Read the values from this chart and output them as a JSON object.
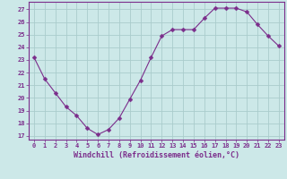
{
  "x": [
    0,
    1,
    2,
    3,
    4,
    5,
    6,
    7,
    8,
    9,
    10,
    11,
    12,
    13,
    14,
    15,
    16,
    17,
    18,
    19,
    20,
    21,
    22,
    23
  ],
  "y": [
    23.2,
    21.5,
    20.4,
    19.3,
    18.6,
    17.6,
    17.1,
    17.5,
    18.4,
    19.9,
    21.4,
    23.2,
    24.9,
    25.4,
    25.4,
    25.4,
    26.3,
    27.1,
    27.1,
    27.1,
    26.8,
    25.8,
    24.9,
    24.1
  ],
  "line_color": "#7b2d8b",
  "marker": "D",
  "marker_size": 2.5,
  "bg_color": "#cce8e8",
  "grid_color": "#aacccc",
  "spine_color": "#7b2d8b",
  "tick_color": "#7b2d8b",
  "xlabel": "Windchill (Refroidissement éolien,°C)",
  "xlabel_color": "#7b2d8b",
  "xlim": [
    -0.5,
    23.5
  ],
  "ylim": [
    16.7,
    27.6
  ],
  "yticks": [
    17,
    18,
    19,
    20,
    21,
    22,
    23,
    24,
    25,
    26,
    27
  ],
  "xticks": [
    0,
    1,
    2,
    3,
    4,
    5,
    6,
    7,
    8,
    9,
    10,
    11,
    12,
    13,
    14,
    15,
    16,
    17,
    18,
    19,
    20,
    21,
    22,
    23
  ],
  "tick_fontsize": 5.0,
  "xlabel_fontsize": 6.0
}
